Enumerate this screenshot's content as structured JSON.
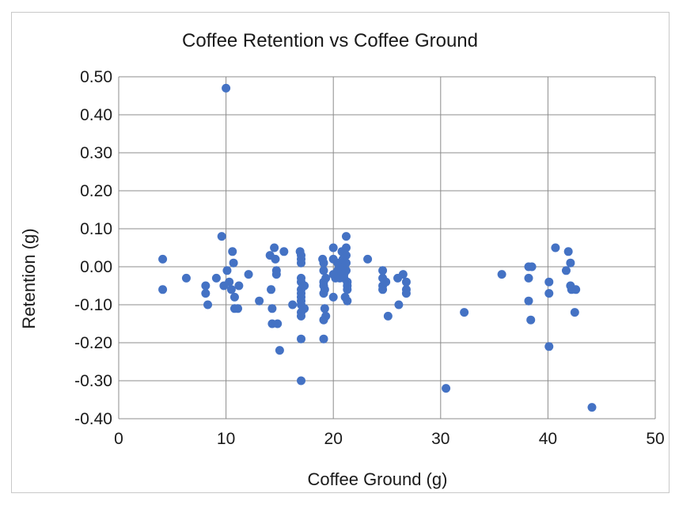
{
  "chart_data": {
    "type": "scatter",
    "title": "Coffee Retention vs Coffee Ground",
    "xlabel": "Coffee Ground (g)",
    "ylabel": "Retention (g)",
    "xlim": [
      0,
      50
    ],
    "ylim": [
      -0.4,
      0.5
    ],
    "x_ticks": [
      "0",
      "10",
      "20",
      "30",
      "40",
      "50"
    ],
    "y_ticks": [
      "0.50",
      "0.40",
      "0.30",
      "0.20",
      "0.10",
      "0.00",
      "-0.10",
      "-0.20",
      "-0.30",
      "-0.40"
    ],
    "grid": true,
    "legend": "none",
    "marker_color": "#4472c4",
    "points": [
      [
        4.1,
        0.02
      ],
      [
        4.1,
        -0.06
      ],
      [
        6.3,
        -0.03
      ],
      [
        8.1,
        -0.05
      ],
      [
        8.1,
        -0.07
      ],
      [
        8.3,
        -0.1
      ],
      [
        9.1,
        -0.03
      ],
      [
        9.6,
        0.08
      ],
      [
        9.8,
        -0.05
      ],
      [
        10.0,
        0.47
      ],
      [
        10.1,
        -0.01
      ],
      [
        10.3,
        -0.04
      ],
      [
        10.5,
        -0.06
      ],
      [
        10.6,
        0.04
      ],
      [
        10.7,
        0.01
      ],
      [
        10.8,
        -0.08
      ],
      [
        10.8,
        -0.11
      ],
      [
        11.1,
        -0.11
      ],
      [
        11.2,
        -0.05
      ],
      [
        12.1,
        -0.02
      ],
      [
        13.1,
        -0.09
      ],
      [
        14.1,
        0.03
      ],
      [
        14.2,
        -0.06
      ],
      [
        14.3,
        -0.11
      ],
      [
        14.3,
        -0.15
      ],
      [
        14.5,
        0.05
      ],
      [
        14.6,
        0.02
      ],
      [
        14.7,
        -0.01
      ],
      [
        14.7,
        -0.02
      ],
      [
        14.8,
        -0.15
      ],
      [
        15.0,
        -0.22
      ],
      [
        15.4,
        0.04
      ],
      [
        16.2,
        -0.1
      ],
      [
        16.9,
        0.04
      ],
      [
        17.0,
        0.03
      ],
      [
        17.0,
        0.02
      ],
      [
        17.0,
        0.01
      ],
      [
        17.0,
        -0.03
      ],
      [
        17.0,
        -0.04
      ],
      [
        17.0,
        -0.06
      ],
      [
        17.0,
        -0.07
      ],
      [
        17.0,
        -0.08
      ],
      [
        17.0,
        -0.09
      ],
      [
        17.0,
        -0.1
      ],
      [
        17.0,
        -0.12
      ],
      [
        17.0,
        -0.13
      ],
      [
        17.0,
        -0.19
      ],
      [
        17.0,
        -0.3
      ],
      [
        17.3,
        -0.05
      ],
      [
        17.3,
        -0.11
      ],
      [
        19.0,
        0.02
      ],
      [
        19.1,
        0.01
      ],
      [
        19.1,
        -0.01
      ],
      [
        19.1,
        -0.04
      ],
      [
        19.1,
        -0.05
      ],
      [
        19.1,
        -0.07
      ],
      [
        19.1,
        -0.14
      ],
      [
        19.1,
        -0.19
      ],
      [
        19.2,
        -0.06
      ],
      [
        19.2,
        -0.11
      ],
      [
        19.3,
        -0.03
      ],
      [
        19.3,
        -0.13
      ],
      [
        20.0,
        0.05
      ],
      [
        20.0,
        0.02
      ],
      [
        20.0,
        -0.02
      ],
      [
        20.0,
        -0.08
      ],
      [
        20.2,
        -0.03
      ],
      [
        20.4,
        0.01
      ],
      [
        20.4,
        -0.01
      ],
      [
        20.6,
        -0.03
      ],
      [
        20.8,
        0.04
      ],
      [
        20.9,
        0.02
      ],
      [
        21.0,
        0.0
      ],
      [
        21.0,
        -0.02
      ],
      [
        21.0,
        -0.03
      ],
      [
        21.1,
        -0.08
      ],
      [
        21.2,
        0.08
      ],
      [
        21.2,
        0.05
      ],
      [
        21.2,
        0.03
      ],
      [
        21.2,
        0.01
      ],
      [
        21.2,
        -0.01
      ],
      [
        21.3,
        -0.04
      ],
      [
        21.3,
        -0.05
      ],
      [
        21.3,
        -0.06
      ],
      [
        21.3,
        -0.09
      ],
      [
        23.2,
        0.02
      ],
      [
        24.6,
        -0.01
      ],
      [
        24.6,
        -0.03
      ],
      [
        24.6,
        -0.05
      ],
      [
        24.6,
        -0.06
      ],
      [
        24.9,
        -0.04
      ],
      [
        25.1,
        -0.13
      ],
      [
        26.0,
        -0.03
      ],
      [
        26.1,
        -0.1
      ],
      [
        26.5,
        -0.02
      ],
      [
        26.8,
        -0.04
      ],
      [
        26.8,
        -0.06
      ],
      [
        26.8,
        -0.07
      ],
      [
        30.5,
        -0.32
      ],
      [
        32.2,
        -0.12
      ],
      [
        35.7,
        -0.02
      ],
      [
        38.2,
        0.0
      ],
      [
        38.2,
        -0.03
      ],
      [
        38.2,
        -0.09
      ],
      [
        38.4,
        -0.14
      ],
      [
        38.5,
        0.0
      ],
      [
        40.1,
        -0.04
      ],
      [
        40.1,
        -0.07
      ],
      [
        40.1,
        -0.21
      ],
      [
        40.7,
        0.05
      ],
      [
        41.7,
        -0.01
      ],
      [
        41.9,
        0.04
      ],
      [
        42.1,
        0.01
      ],
      [
        42.1,
        -0.05
      ],
      [
        42.2,
        -0.06
      ],
      [
        42.5,
        -0.12
      ],
      [
        42.6,
        -0.06
      ],
      [
        44.1,
        -0.37
      ]
    ]
  }
}
